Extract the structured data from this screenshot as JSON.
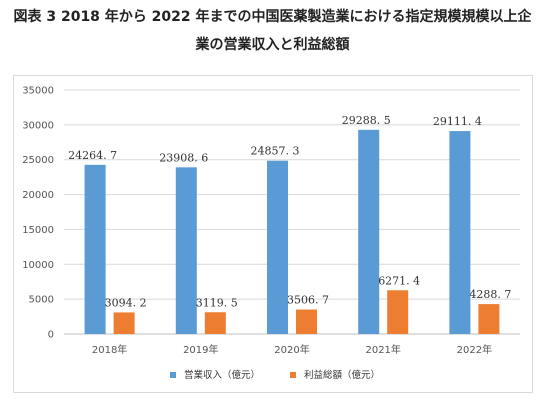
{
  "title_line1": "図表 3 2018 年から 2022 年までの中国医薬製造業における指定規模規模以上企",
  "title_line2": "業の営業収入と利益総額",
  "chart_data": {
    "type": "bar",
    "categories": [
      "2018年",
      "2019年",
      "2020年",
      "2021年",
      "2022年"
    ],
    "series": [
      {
        "name": "営業収入（億元）",
        "color": "#5b9bd5",
        "values": [
          24264.7,
          23908.6,
          24857.3,
          29288.5,
          29111.4
        ],
        "labels": [
          "24264. 7",
          "23908. 6",
          "24857. 3",
          "29288. 5",
          "29111. 4"
        ]
      },
      {
        "name": "利益総額（億元）",
        "color": "#ed7d31",
        "values": [
          3094.2,
          3119.5,
          3506.7,
          6271.4,
          4288.7
        ],
        "labels": [
          "3094. 2",
          "3119. 5",
          "3506. 7",
          "6271. 4",
          "4288. 7"
        ]
      }
    ],
    "yticks": [
      0,
      5000,
      10000,
      15000,
      20000,
      25000,
      30000,
      35000
    ],
    "ylim": [
      0,
      35000
    ],
    "grid": true,
    "legend_position": "bottom"
  }
}
